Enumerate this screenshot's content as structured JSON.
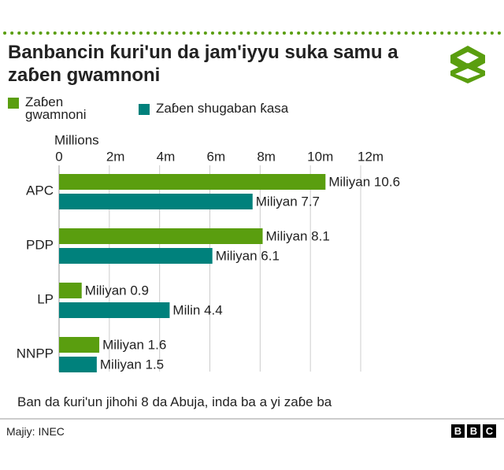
{
  "chart_data": {
    "type": "bar",
    "orientation": "horizontal",
    "title": "Banbancin ƙuri'un da jam'iyyu suka samu a zaɓen gwamnoni",
    "xlabel": "Millions",
    "categories": [
      "APC",
      "PDP",
      "LP",
      "NNPP"
    ],
    "series": [
      {
        "name": "Zaɓen gwamnoni",
        "color": "#5a9e0f",
        "values": [
          10.6,
          8.1,
          0.9,
          1.6
        ],
        "value_labels": [
          "Miliyan 10.6",
          "Miliyan 8.1",
          "Miliyan 0.9",
          "Miliyan 1.6"
        ]
      },
      {
        "name": "Zaɓen shugaban ƙasa",
        "color": "#00817c",
        "values": [
          7.7,
          6.1,
          4.4,
          1.5
        ],
        "value_labels": [
          "Miliyan 7.7",
          "Miliyan 6.1",
          "Milin 4.4",
          "Miliyan 1.5"
        ]
      }
    ],
    "xlim": [
      0,
      12
    ],
    "xticks": [
      0,
      {
        "value": 2,
        "label": "2m"
      },
      {
        "value": 4,
        "label": "4m"
      },
      {
        "value": 6,
        "label": "6m"
      },
      {
        "value": 8,
        "label": "8m"
      },
      {
        "value": 10,
        "label": "10m"
      },
      {
        "value": 12,
        "label": "12m"
      }
    ],
    "grid": true,
    "note": "Ban da ƙuri'un jihohi 8 da Abuja, inda ba a yi zaɓe ba",
    "source": "Majiy: INEC",
    "logo": [
      "B",
      "B",
      "C"
    ]
  }
}
